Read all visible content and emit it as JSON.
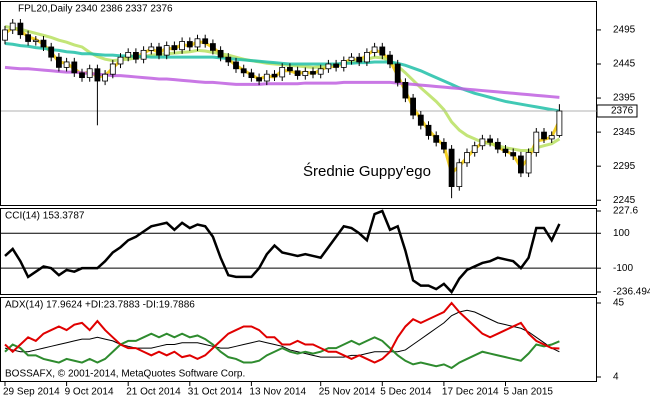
{
  "chart_data": {
    "type": "candlestick",
    "title": "FPL20,Daily  2340 2386 2337 2376",
    "annotation": "Średnie Guppy'ego",
    "copyright": "BOSSAFX, © 2001-2014, MetaQuotes Software Corp.",
    "categories": [
      "29 Sep 2014",
      null,
      null,
      null,
      null,
      null,
      null,
      null,
      "9 Oct 2014",
      null,
      null,
      null,
      null,
      null,
      null,
      null,
      "21 Oct 2014",
      null,
      null,
      null,
      null,
      null,
      null,
      null,
      "31 Oct 2014",
      null,
      null,
      null,
      null,
      null,
      null,
      null,
      "13 Nov 2014",
      null,
      null,
      null,
      null,
      null,
      null,
      null,
      null,
      "25 Nov 2014",
      null,
      null,
      null,
      null,
      null,
      null,
      null,
      "5 Dec 2014",
      null,
      null,
      null,
      null,
      null,
      null,
      null,
      "17 Dec 2014",
      null,
      null,
      null,
      null,
      null,
      null,
      null,
      "5 Jan 2015",
      null,
      null,
      null,
      null,
      null,
      null,
      null
    ],
    "open": [
      2480,
      2495,
      2505,
      2488,
      2478,
      2480,
      2470,
      2455,
      2440,
      2448,
      2432,
      2425,
      2438,
      2420,
      2430,
      2445,
      2455,
      2462,
      2452,
      2465,
      2470,
      2458,
      2472,
      2466,
      2478,
      2470,
      2482,
      2475,
      2465,
      2455,
      2448,
      2438,
      2432,
      2425,
      2420,
      2430,
      2426,
      2440,
      2435,
      2428,
      2434,
      2430,
      2438,
      2445,
      2440,
      2450,
      2455,
      2448,
      2462,
      2470,
      2458,
      2445,
      2418,
      2395,
      2370,
      2355,
      2340,
      2330,
      2320,
      2265,
      2300,
      2315,
      2325,
      2335,
      2330,
      2320,
      2315,
      2310,
      2285,
      2315,
      2345,
      2335,
      2340
    ],
    "high": [
      2501,
      2511,
      2511,
      2494,
      2486,
      2486,
      2476,
      2461,
      2454,
      2454,
      2438,
      2444,
      2444,
      2436,
      2451,
      2461,
      2468,
      2468,
      2471,
      2476,
      2476,
      2478,
      2478,
      2484,
      2484,
      2488,
      2488,
      2481,
      2471,
      2461,
      2454,
      2444,
      2438,
      2431,
      2436,
      2436,
      2446,
      2446,
      2441,
      2440,
      2440,
      2444,
      2451,
      2451,
      2456,
      2461,
      2461,
      2468,
      2476,
      2476,
      2464,
      2451,
      2424,
      2401,
      2376,
      2361,
      2346,
      2336,
      2326,
      2306,
      2321,
      2331,
      2341,
      2341,
      2336,
      2326,
      2321,
      2316,
      2321,
      2351,
      2351,
      2346,
      2386
    ],
    "low": [
      2474,
      2489,
      2482,
      2472,
      2472,
      2464,
      2449,
      2434,
      2434,
      2426,
      2419,
      2419,
      2355,
      2414,
      2424,
      2439,
      2449,
      2446,
      2446,
      2459,
      2452,
      2452,
      2460,
      2460,
      2464,
      2464,
      2469,
      2459,
      2449,
      2442,
      2432,
      2426,
      2419,
      2414,
      2414,
      2420,
      2420,
      2429,
      2422,
      2422,
      2424,
      2424,
      2432,
      2434,
      2434,
      2444,
      2442,
      2442,
      2456,
      2452,
      2439,
      2412,
      2389,
      2364,
      2349,
      2334,
      2324,
      2314,
      2248,
      2259,
      2294,
      2309,
      2319,
      2324,
      2314,
      2309,
      2304,
      2279,
      2279,
      2309,
      2329,
      2329,
      2337
    ],
    "close": [
      2495,
      2505,
      2488,
      2478,
      2480,
      2470,
      2455,
      2440,
      2448,
      2432,
      2425,
      2438,
      2420,
      2430,
      2445,
      2455,
      2462,
      2452,
      2465,
      2470,
      2458,
      2472,
      2466,
      2478,
      2470,
      2482,
      2475,
      2465,
      2455,
      2448,
      2438,
      2432,
      2425,
      2420,
      2430,
      2426,
      2440,
      2435,
      2428,
      2434,
      2430,
      2438,
      2445,
      2440,
      2450,
      2455,
      2448,
      2462,
      2470,
      2458,
      2445,
      2418,
      2395,
      2370,
      2355,
      2340,
      2330,
      2320,
      2265,
      2300,
      2315,
      2325,
      2335,
      2330,
      2320,
      2315,
      2310,
      2285,
      2315,
      2345,
      2335,
      2340,
      2376
    ],
    "ylim": [
      2238,
      2536
    ],
    "yticks": [
      2495,
      2445,
      2395,
      2345,
      2295,
      2245
    ],
    "guppy": [
      {
        "color": "#f2c800",
        "values": [
          2490,
          2498,
          2494,
          2485,
          2481,
          2474,
          2462,
          2448,
          2446,
          2438,
          2430,
          2434,
          2426,
          2428,
          2439,
          2450,
          2458,
          2455,
          2461,
          2467,
          2462,
          2468,
          2467,
          2474,
          2471,
          2478,
          2476,
          2469,
          2460,
          2452,
          2443,
          2436,
          2429,
          2423,
          2427,
          2426,
          2435,
          2435,
          2431,
          2433,
          2431,
          2436,
          2442,
          2441,
          2447,
          2452,
          2450,
          2458,
          2466,
          2461,
          2450,
          2428,
          2405,
          2382,
          2364,
          2348,
          2336,
          2325,
          2285,
          2295,
          2308,
          2320,
          2330,
          2330,
          2323,
          2317,
          2312,
          2293,
          2307,
          2332,
          2334,
          2338,
          2362
        ]
      },
      {
        "color": "#b8e060",
        "values": [
          2500,
          2498,
          2496,
          2493,
          2490,
          2487,
          2484,
          2480,
          2477,
          2473,
          2470,
          2462,
          2456,
          2452,
          2450,
          2451,
          2452,
          2454,
          2456,
          2458,
          2459,
          2460,
          2461,
          2462,
          2463,
          2465,
          2464,
          2462,
          2460,
          2458,
          2455,
          2452,
          2450,
          2448,
          2446,
          2445,
          2444,
          2443,
          2442,
          2441,
          2440,
          2441,
          2443,
          2444,
          2446,
          2448,
          2450,
          2452,
          2455,
          2454,
          2450,
          2442,
          2432,
          2421,
          2410,
          2400,
          2390,
          2378,
          2360,
          2348,
          2340,
          2335,
          2330,
          2328,
          2325,
          2322,
          2320,
          2318,
          2318,
          2322,
          2325,
          2328,
          2335
        ]
      },
      {
        "color": "#20c0a8",
        "values": [
          2475,
          2474,
          2472,
          2471,
          2469,
          2468,
          2466,
          2465,
          2463,
          2462,
          2460,
          2460,
          2459,
          2458,
          2458,
          2457,
          2457,
          2456,
          2456,
          2455,
          2455,
          2455,
          2455,
          2455,
          2455,
          2455,
          2455,
          2455,
          2454,
          2453,
          2452,
          2451,
          2450,
          2449,
          2448,
          2447,
          2446,
          2445,
          2445,
          2445,
          2445,
          2445,
          2445,
          2445,
          2446,
          2446,
          2447,
          2447,
          2448,
          2448,
          2448,
          2446,
          2443,
          2439,
          2435,
          2430,
          2425,
          2420,
          2415,
          2410,
          2406,
          2402,
          2399,
          2396,
          2393,
          2390,
          2388,
          2386,
          2384,
          2382,
          2380,
          2378,
          2376
        ]
      },
      {
        "color": "#c060e0",
        "values": [
          2440,
          2439,
          2438,
          2438,
          2437,
          2436,
          2435,
          2434,
          2433,
          2433,
          2432,
          2431,
          2430,
          2429,
          2428,
          2428,
          2427,
          2426,
          2425,
          2424,
          2423,
          2423,
          2422,
          2421,
          2420,
          2419,
          2418,
          2418,
          2417,
          2416,
          2415,
          2415,
          2415,
          2415,
          2416,
          2416,
          2416,
          2416,
          2416,
          2417,
          2417,
          2417,
          2417,
          2417,
          2418,
          2418,
          2418,
          2418,
          2418,
          2418,
          2418,
          2417,
          2416,
          2415,
          2414,
          2413,
          2412,
          2411,
          2410,
          2409,
          2408,
          2407,
          2406,
          2405,
          2404,
          2403,
          2402,
          2401,
          2400,
          2399,
          2398,
          2397,
          2396
        ]
      }
    ],
    "panels": [
      {
        "type": "line",
        "title": "CCI(14) 153.3787",
        "ylim": [
          -236.494,
          227.6
        ],
        "yticks": [
          227.6,
          100,
          -100,
          -236.494
        ],
        "levels": [
          100,
          -100
        ],
        "series": [
          {
            "color": "#000000",
            "values": [
              -30,
              10,
              -60,
              -150,
              -120,
              -90,
              -100,
              -140,
              -110,
              -120,
              -100,
              -100,
              -100,
              -60,
              -10,
              20,
              60,
              80,
              110,
              140,
              150,
              160,
              120,
              160,
              130,
              150,
              140,
              80,
              -40,
              -140,
              -150,
              -150,
              -150,
              -100,
              -20,
              30,
              -10,
              -20,
              -30,
              -20,
              -30,
              -40,
              20,
              80,
              140,
              130,
              100,
              60,
              210,
              227.6,
              120,
              140,
              0,
              -170,
              -200,
              -200,
              -220,
              -190,
              -236.494,
              -160,
              -110,
              -90,
              -70,
              -60,
              -40,
              -50,
              -60,
              -100,
              -40,
              130,
              130,
              60,
              153.3787
            ]
          }
        ]
      },
      {
        "type": "line",
        "title": "ADX(14) 17.9624 +DI:23.7883 -DI:19.7886",
        "ylim": [
          4,
          45
        ],
        "yticks": [
          45,
          4
        ],
        "series": [
          {
            "color": "#000000",
            "values": [
              20,
              19,
              18,
              18,
              19,
              20,
              21,
              22,
              23,
              24,
              25,
              25,
              26,
              25,
              24,
              22,
              21,
              20,
              20,
              20,
              21,
              22,
              22,
              23,
              23,
              23,
              22,
              21,
              20,
              20,
              21,
              22,
              23,
              24,
              23,
              22,
              21,
              19,
              18,
              17,
              16,
              15,
              15,
              15,
              15,
              16,
              16,
              17,
              18,
              18,
              18,
              18,
              19,
              22,
              25,
              28,
              31,
              34,
              38,
              40,
              41,
              40,
              38,
              36,
              34,
              33,
              32,
              31,
              29,
              26,
              23,
              20,
              17.9624
            ]
          },
          {
            "color": "#2e8b2e",
            "values": [
              18,
              22,
              20,
              16,
              16,
              14,
              13,
              12,
              14,
              13,
              12,
              14,
              12,
              14,
              18,
              22,
              24,
              24,
              26,
              28,
              26,
              28,
              26,
              28,
              26,
              27,
              25,
              22,
              18,
              15,
              14,
              12,
              12,
              13,
              16,
              18,
              20,
              18,
              17,
              18,
              17,
              18,
              20,
              20,
              22,
              24,
              22,
              24,
              26,
              24,
              20,
              16,
              13,
              11,
              12,
              11,
              10,
              11,
              9,
              12,
              14,
              16,
              18,
              17,
              16,
              15,
              14,
              13,
              17,
              22,
              21,
              22,
              23.7883
            ]
          },
          {
            "color": "#e00000",
            "values": [
              22,
              18,
              22,
              26,
              24,
              28,
              30,
              32,
              30,
              33,
              34,
              30,
              35,
              30,
              26,
              22,
              20,
              20,
              18,
              16,
              18,
              16,
              18,
              15,
              16,
              14,
              16,
              20,
              24,
              28,
              30,
              32,
              32,
              30,
              26,
              26,
              22,
              22,
              24,
              22,
              22,
              20,
              18,
              18,
              16,
              14,
              16,
              14,
              12,
              14,
              18,
              26,
              32,
              36,
              34,
              36,
              38,
              40,
              45,
              40,
              36,
              32,
              28,
              26,
              28,
              30,
              32,
              34,
              28,
              24,
              22,
              20,
              19.7886
            ]
          }
        ]
      }
    ]
  }
}
